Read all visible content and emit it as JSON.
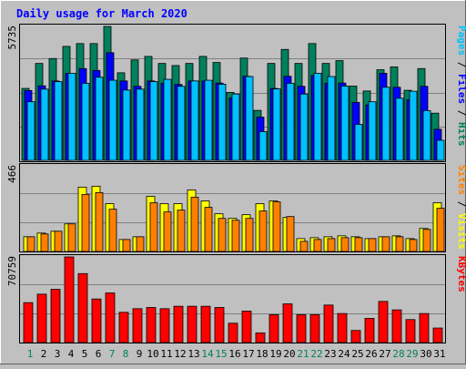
{
  "title": "Daily usage for March 2020",
  "colors": {
    "background": "#c0c0c0",
    "title": "#0000ff",
    "hits": "#00805c",
    "files": "#0000ff",
    "pages": "#00c0ff",
    "visits": "#ffff00",
    "sites": "#ff8000",
    "kbytes": "#ff0000",
    "weekend_day": "#00805c",
    "weekday": "#000000",
    "grid": "#808080"
  },
  "chart_data": [
    {
      "type": "bar",
      "panel": "top",
      "y_max_label": "5735",
      "ylim": [
        0,
        5735
      ],
      "legend": [
        "Pages",
        "Files",
        "Hits"
      ],
      "categories": [
        "1",
        "2",
        "3",
        "4",
        "5",
        "6",
        "7",
        "8",
        "9",
        "10",
        "11",
        "12",
        "13",
        "14",
        "15",
        "16",
        "17",
        "18",
        "19",
        "20",
        "21",
        "22",
        "23",
        "24",
        "25",
        "26",
        "27",
        "28",
        "29",
        "30",
        "31"
      ],
      "weekend_days": [
        "1",
        "7",
        "8",
        "14",
        "15",
        "21",
        "22",
        "28",
        "29"
      ],
      "series": [
        {
          "name": "Hits",
          "values": [
            3080,
            4150,
            4360,
            4880,
            5000,
            5000,
            5735,
            3750,
            4300,
            4450,
            4150,
            4060,
            4150,
            4450,
            4190,
            2910,
            4380,
            2140,
            4150,
            4750,
            4150,
            5000,
            4150,
            4270,
            3180,
            2970,
            3880,
            4000,
            3000,
            3930,
            2020
          ]
        },
        {
          "name": "Files",
          "values": [
            2990,
            3190,
            3400,
            3730,
            3930,
            3850,
            4610,
            3400,
            3170,
            3400,
            3300,
            3250,
            3400,
            3400,
            3310,
            2670,
            3600,
            1850,
            3080,
            3600,
            3170,
            3640,
            3300,
            3310,
            2480,
            2370,
            3730,
            3130,
            2590,
            3170,
            1330
          ]
        },
        {
          "name": "Pages",
          "values": [
            2510,
            3050,
            3370,
            3730,
            3300,
            3560,
            3430,
            3010,
            3050,
            3370,
            3470,
            3170,
            3400,
            3430,
            3260,
            2840,
            3590,
            1230,
            3060,
            3300,
            2840,
            3730,
            3590,
            3180,
            1540,
            2510,
            3130,
            2660,
            2960,
            2130,
            860
          ]
        }
      ]
    },
    {
      "type": "bar",
      "panel": "middle",
      "y_max_label": "466",
      "ylim": [
        0,
        466
      ],
      "legend": [
        "Sites",
        "Visits"
      ],
      "categories": [
        "1",
        "2",
        "3",
        "4",
        "5",
        "6",
        "7",
        "8",
        "9",
        "10",
        "11",
        "12",
        "13",
        "14",
        "15",
        "16",
        "17",
        "18",
        "19",
        "20",
        "21",
        "22",
        "23",
        "24",
        "25",
        "26",
        "27",
        "28",
        "29",
        "30",
        "31"
      ],
      "series": [
        {
          "name": "Visits",
          "values": [
            80,
            100,
            110,
            150,
            350,
            355,
            260,
            65,
            80,
            300,
            260,
            260,
            335,
            275,
            205,
            180,
            200,
            260,
            275,
            185,
            70,
            75,
            80,
            85,
            80,
            70,
            80,
            85,
            70,
            125,
            265
          ]
        },
        {
          "name": "Sites",
          "values": [
            80,
            95,
            110,
            150,
            310,
            320,
            230,
            65,
            80,
            265,
            215,
            225,
            295,
            240,
            180,
            170,
            180,
            220,
            270,
            190,
            55,
            65,
            70,
            75,
            75,
            70,
            80,
            80,
            65,
            120,
            235
          ]
        }
      ]
    },
    {
      "type": "bar",
      "panel": "bottom",
      "y_max_label": "70759",
      "ylim": [
        0,
        70759
      ],
      "legend": [
        "KBytes"
      ],
      "categories": [
        "1",
        "2",
        "3",
        "4",
        "5",
        "6",
        "7",
        "8",
        "9",
        "10",
        "11",
        "12",
        "13",
        "14",
        "15",
        "16",
        "17",
        "18",
        "19",
        "20",
        "21",
        "22",
        "23",
        "24",
        "25",
        "26",
        "27",
        "28",
        "29",
        "30",
        "31"
      ],
      "series": [
        {
          "name": "KBytes",
          "values": [
            33000,
            40000,
            44000,
            70759,
            57000,
            36000,
            41000,
            25000,
            28000,
            29000,
            28000,
            30000,
            30000,
            30000,
            29000,
            16000,
            26000,
            8000,
            23000,
            32000,
            23000,
            23000,
            31000,
            24000,
            10000,
            20000,
            34000,
            27000,
            19000,
            24000,
            12000
          ]
        }
      ]
    }
  ]
}
